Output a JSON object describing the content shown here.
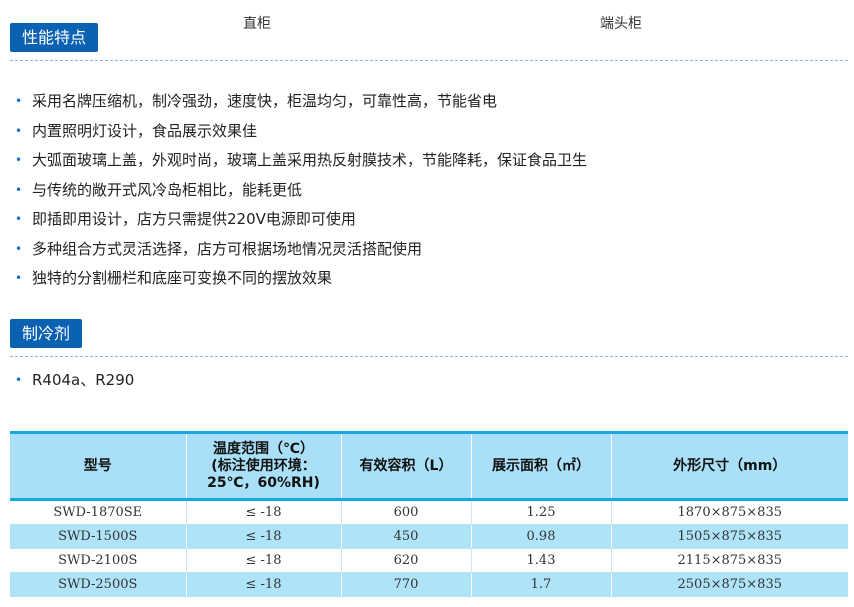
{
  "captions": {
    "left": "直柜",
    "right": "端头柜"
  },
  "features": {
    "title": "性能特点",
    "items": [
      "采用名牌压缩机，制冷强劲，速度快，柜温均匀，可靠性高，节能省电",
      "内置照明灯设计，食品展示效果佳",
      "大弧面玻璃上盖，外观时尚，玻璃上盖采用热反射膜技术，节能降耗，保证食品卫生",
      "与传统的敞开式风冷岛柜相比，能耗更低",
      "即插即用设计，店方只需提供220V电源即可使用",
      "多种组合方式灵活选择，店方可根据场地情况灵活搭配使用",
      "独特的分割栅栏和底座可变换不同的摆放效果"
    ]
  },
  "refrigerant": {
    "title": "制冷剂",
    "items": [
      "R404a、R290"
    ]
  },
  "colors": {
    "badge": "#0b62b3",
    "table_border": "#18a8e0",
    "table_header": "#a9e0f7"
  },
  "table": {
    "headers": [
      "型号",
      "温度范围（℃）\n(标注使用环境：\n25℃，60%RH)",
      "有效容积（L）",
      "展示面积（㎡）",
      "外形尺寸（mm）"
    ],
    "rows": [
      [
        "SWD-1870SE",
        "≤ -18",
        "600",
        "1.25",
        "1870×875×835"
      ],
      [
        "SWD-1500S",
        "≤ -18",
        "450",
        "0.98",
        "1505×875×835"
      ],
      [
        "SWD-2100S",
        "≤ -18",
        "620",
        "1.43",
        "2115×875×835"
      ],
      [
        "SWD-2500S",
        "≤ -18",
        "770",
        "1.7",
        "2505×875×835"
      ]
    ]
  }
}
